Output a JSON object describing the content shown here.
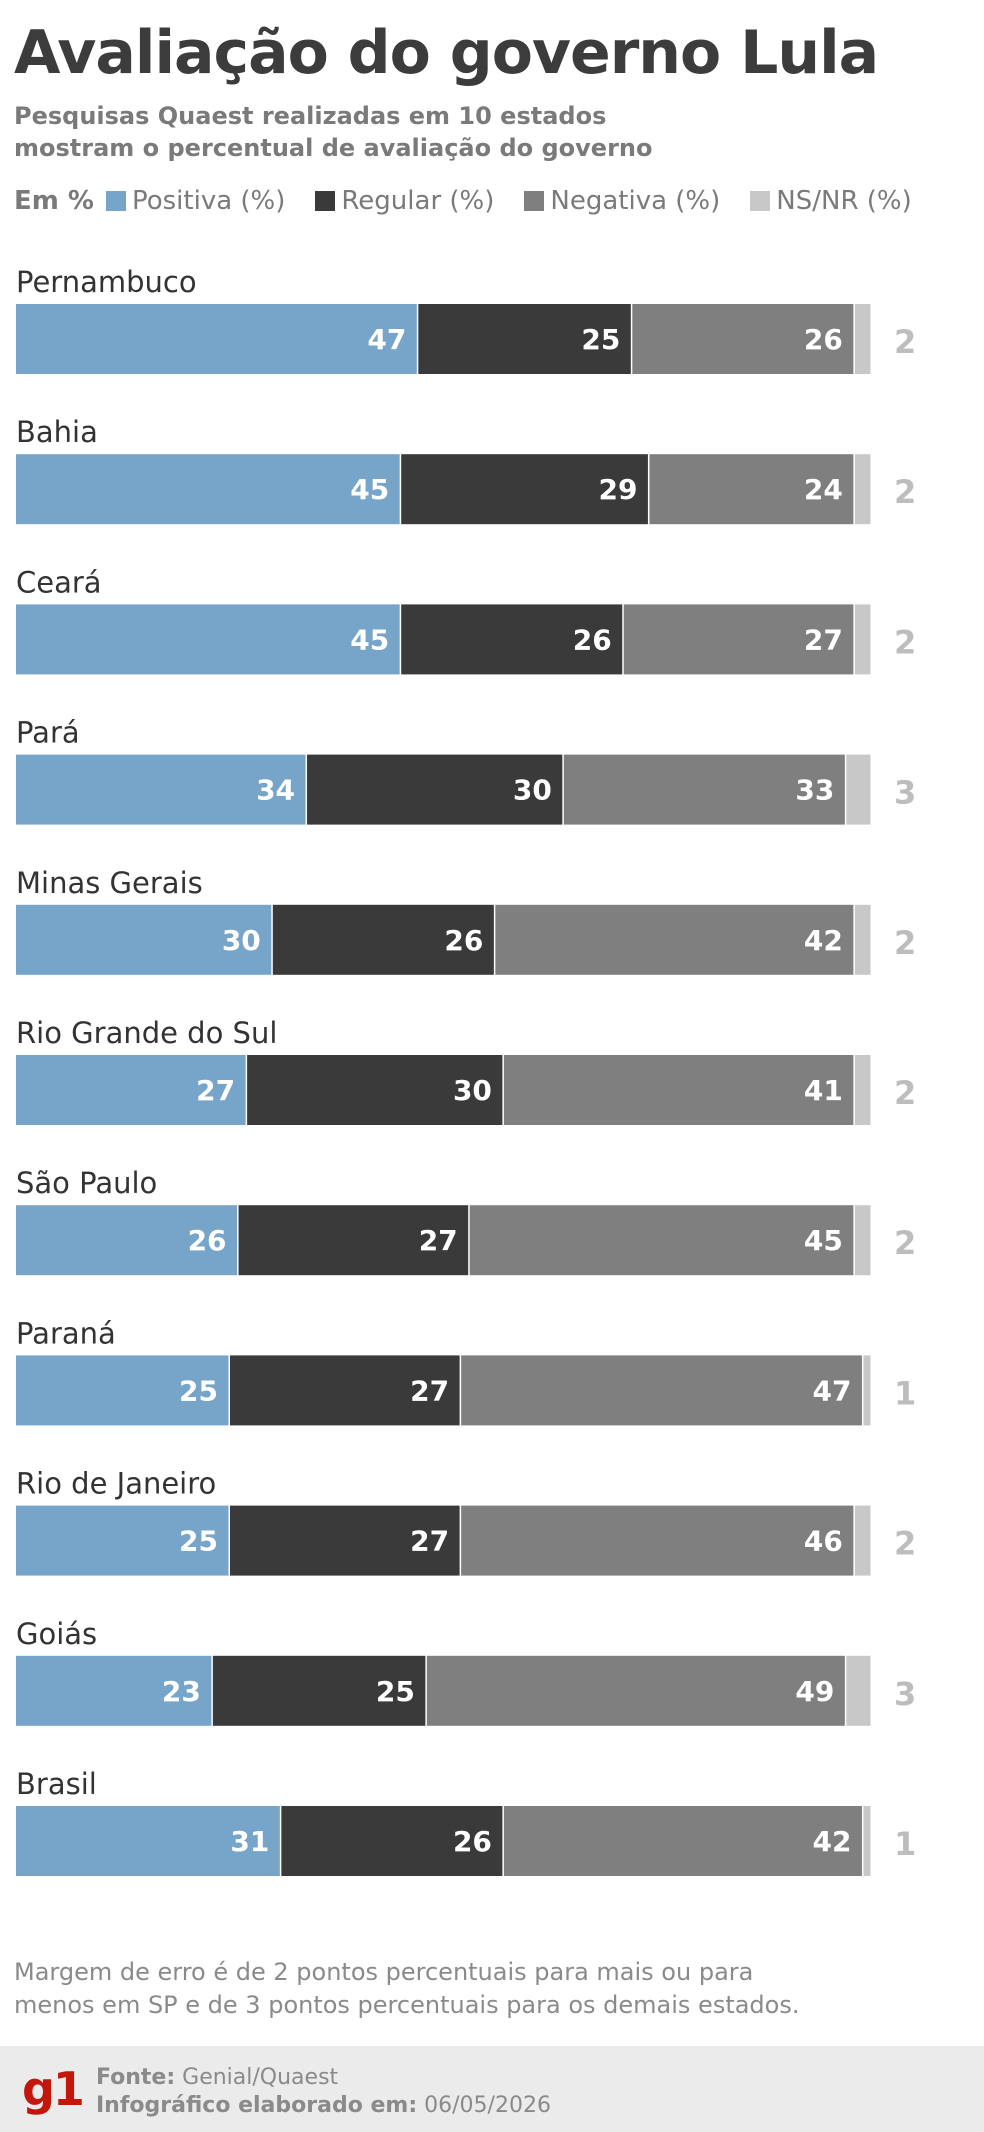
{
  "header": {
    "title": "Avaliação do governo Lula",
    "subtitle_line1": "Pesquisas Quaest realizadas em 10 estados",
    "subtitle_line2": "mostram o percentual de avaliação do governo"
  },
  "legend": {
    "unit_label": "Em %",
    "items": [
      {
        "label": "Positiva (%)",
        "color": "#77a5c9"
      },
      {
        "label": "Regular (%)",
        "color": "#3a3a3a"
      },
      {
        "label": "Negativa (%)",
        "color": "#7f7f7f"
      },
      {
        "label": "NS/NR (%)",
        "color": "#c8c8c8"
      }
    ]
  },
  "chart_data": {
    "type": "bar",
    "orientation": "horizontal-stacked",
    "categories": [
      "Pernambuco",
      "Bahia",
      "Ceará",
      "Pará",
      "Minas Gerais",
      "Rio Grande do Sul",
      "São Paulo",
      "Paraná",
      "Rio de Janeiro",
      "Goiás",
      "Brasil"
    ],
    "series": [
      {
        "name": "Positiva (%)",
        "color": "#77a5c9",
        "values": [
          47,
          45,
          45,
          34,
          30,
          27,
          26,
          25,
          25,
          23,
          31
        ]
      },
      {
        "name": "Regular (%)",
        "color": "#3a3a3a",
        "values": [
          25,
          29,
          26,
          30,
          26,
          30,
          27,
          27,
          27,
          25,
          26
        ]
      },
      {
        "name": "Negativa (%)",
        "color": "#7f7f7f",
        "values": [
          26,
          24,
          27,
          33,
          42,
          41,
          45,
          47,
          46,
          49,
          42
        ]
      },
      {
        "name": "NS/NR (%)",
        "color": "#c8c8c8",
        "values": [
          2,
          2,
          2,
          3,
          2,
          2,
          2,
          1,
          2,
          3,
          1
        ]
      }
    ],
    "title": "Avaliação do governo Lula",
    "xlim": [
      0,
      100
    ],
    "grid": false,
    "legend": "top-left"
  },
  "notes": {
    "margin_line1": "Margem de erro é de 2 pontos percentuais para mais ou para",
    "margin_line2": "menos em SP e de 3 pontos percentuais para os demais estados."
  },
  "footer": {
    "logo": "g1",
    "source_label": "Fonte:",
    "source_value": "Genial/Quaest",
    "date_label": "Infográfico elaborado em:",
    "date_value": "06/05/2026"
  }
}
